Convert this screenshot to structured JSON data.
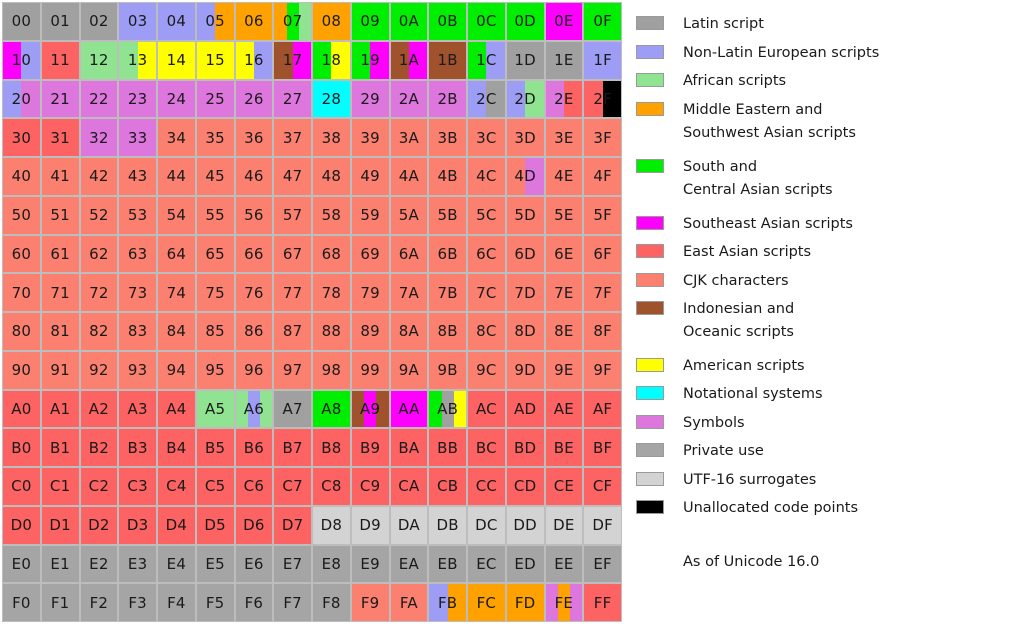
{
  "title": "",
  "colors": {
    "L": "#a0a0a0",
    "N": "#9d9df5",
    "A": "#90e391",
    "M": "#ffa200",
    "S": "#00ee00",
    "E": "#ff00ff",
    "R": "#fd6363",
    "K": "#fb8070",
    "I": "#a0522d",
    "U": "#ffff00",
    "T": "#00ffff",
    "Y": "#dd77dd",
    "P": "#a5a5a5",
    "G": "#d3d3d3",
    "X": "#000000"
  },
  "legend": [
    {
      "key": "L",
      "lines": [
        "Latin script"
      ]
    },
    {
      "key": "N",
      "lines": [
        "Non-Latin European scripts"
      ]
    },
    {
      "key": "A",
      "lines": [
        "African scripts"
      ]
    },
    {
      "key": "M",
      "lines": [
        "Middle Eastern and",
        "Southwest Asian scripts"
      ]
    },
    {
      "key": "S",
      "lines": [
        "South and",
        "Central Asian scripts"
      ]
    },
    {
      "key": "E",
      "lines": [
        "Southeast Asian scripts"
      ]
    },
    {
      "key": "R",
      "lines": [
        "East Asian scripts"
      ]
    },
    {
      "key": "K",
      "lines": [
        "CJK characters"
      ]
    },
    {
      "key": "I",
      "lines": [
        "Indonesian and",
        "Oceanic scripts"
      ]
    },
    {
      "key": "U",
      "lines": [
        "American scripts"
      ]
    },
    {
      "key": "T",
      "lines": [
        "Notational systems"
      ]
    },
    {
      "key": "Y",
      "lines": [
        "Symbols"
      ]
    },
    {
      "key": "P",
      "lines": [
        "Private use"
      ]
    },
    {
      "key": "G",
      "lines": [
        "UTF-16 surrogates"
      ]
    },
    {
      "key": "X",
      "lines": [
        "Unallocated code points"
      ]
    }
  ],
  "note": "As of Unicode 16.0",
  "cells": [
    {
      "label": "00",
      "c": [
        "L"
      ]
    },
    {
      "label": "01",
      "c": [
        "L"
      ]
    },
    {
      "label": "02",
      "c": [
        "L"
      ]
    },
    {
      "label": "03",
      "c": [
        "N"
      ]
    },
    {
      "label": "04",
      "c": [
        "N"
      ]
    },
    {
      "label": "05",
      "c": [
        "N",
        "M"
      ]
    },
    {
      "label": "06",
      "c": [
        "M"
      ]
    },
    {
      "label": "07",
      "c": [
        "M",
        "S",
        "A"
      ]
    },
    {
      "label": "08",
      "c": [
        "M"
      ]
    },
    {
      "label": "09",
      "c": [
        "S"
      ]
    },
    {
      "label": "0A",
      "c": [
        "S"
      ]
    },
    {
      "label": "0B",
      "c": [
        "S"
      ]
    },
    {
      "label": "0C",
      "c": [
        "S"
      ]
    },
    {
      "label": "0D",
      "c": [
        "S"
      ]
    },
    {
      "label": "0E",
      "c": [
        "E"
      ]
    },
    {
      "label": "0F",
      "c": [
        "S"
      ]
    },
    {
      "label": "10",
      "c": [
        "E",
        "N"
      ]
    },
    {
      "label": "11",
      "c": [
        "R"
      ]
    },
    {
      "label": "12",
      "c": [
        "A"
      ]
    },
    {
      "label": "13",
      "c": [
        "A",
        "U"
      ]
    },
    {
      "label": "14",
      "c": [
        "U"
      ]
    },
    {
      "label": "15",
      "c": [
        "U"
      ]
    },
    {
      "label": "16",
      "c": [
        "U",
        "N"
      ]
    },
    {
      "label": "17",
      "c": [
        "I",
        "E"
      ]
    },
    {
      "label": "18",
      "c": [
        "S",
        "U"
      ]
    },
    {
      "label": "19",
      "c": [
        "S",
        "E"
      ]
    },
    {
      "label": "1A",
      "c": [
        "I",
        "E"
      ]
    },
    {
      "label": "1B",
      "c": [
        "I"
      ]
    },
    {
      "label": "1C",
      "c": [
        "S",
        "N"
      ]
    },
    {
      "label": "1D",
      "c": [
        "L"
      ]
    },
    {
      "label": "1E",
      "c": [
        "L"
      ]
    },
    {
      "label": "1F",
      "c": [
        "N"
      ]
    },
    {
      "label": "20",
      "c": [
        "N",
        "Y"
      ]
    },
    {
      "label": "21",
      "c": [
        "Y"
      ]
    },
    {
      "label": "22",
      "c": [
        "Y"
      ]
    },
    {
      "label": "23",
      "c": [
        "Y"
      ]
    },
    {
      "label": "24",
      "c": [
        "Y"
      ]
    },
    {
      "label": "25",
      "c": [
        "Y"
      ]
    },
    {
      "label": "26",
      "c": [
        "Y"
      ]
    },
    {
      "label": "27",
      "c": [
        "Y"
      ]
    },
    {
      "label": "28",
      "c": [
        "T"
      ]
    },
    {
      "label": "29",
      "c": [
        "Y"
      ]
    },
    {
      "label": "2A",
      "c": [
        "Y"
      ]
    },
    {
      "label": "2B",
      "c": [
        "Y"
      ]
    },
    {
      "label": "2C",
      "c": [
        "N",
        "L"
      ]
    },
    {
      "label": "2D",
      "c": [
        "N",
        "A"
      ]
    },
    {
      "label": "2E",
      "c": [
        "Y",
        "R"
      ]
    },
    {
      "label": "2F",
      "c": [
        "R",
        "X"
      ]
    },
    {
      "label": "30",
      "c": [
        "R"
      ]
    },
    {
      "label": "31",
      "c": [
        "R"
      ]
    },
    {
      "label": "32",
      "c": [
        "Y"
      ]
    },
    {
      "label": "33",
      "c": [
        "Y"
      ]
    },
    {
      "label": "34",
      "c": [
        "K"
      ]
    },
    {
      "label": "35",
      "c": [
        "K"
      ]
    },
    {
      "label": "36",
      "c": [
        "K"
      ]
    },
    {
      "label": "37",
      "c": [
        "K"
      ]
    },
    {
      "label": "38",
      "c": [
        "K"
      ]
    },
    {
      "label": "39",
      "c": [
        "K"
      ]
    },
    {
      "label": "3A",
      "c": [
        "K"
      ]
    },
    {
      "label": "3B",
      "c": [
        "K"
      ]
    },
    {
      "label": "3C",
      "c": [
        "K"
      ]
    },
    {
      "label": "3D",
      "c": [
        "K"
      ]
    },
    {
      "label": "3E",
      "c": [
        "K"
      ]
    },
    {
      "label": "3F",
      "c": [
        "K"
      ]
    },
    {
      "label": "40",
      "c": [
        "K"
      ]
    },
    {
      "label": "41",
      "c": [
        "K"
      ]
    },
    {
      "label": "42",
      "c": [
        "K"
      ]
    },
    {
      "label": "43",
      "c": [
        "K"
      ]
    },
    {
      "label": "44",
      "c": [
        "K"
      ]
    },
    {
      "label": "45",
      "c": [
        "K"
      ]
    },
    {
      "label": "46",
      "c": [
        "K"
      ]
    },
    {
      "label": "47",
      "c": [
        "K"
      ]
    },
    {
      "label": "48",
      "c": [
        "K"
      ]
    },
    {
      "label": "49",
      "c": [
        "K"
      ]
    },
    {
      "label": "4A",
      "c": [
        "K"
      ]
    },
    {
      "label": "4B",
      "c": [
        "K"
      ]
    },
    {
      "label": "4C",
      "c": [
        "K"
      ]
    },
    {
      "label": "4D",
      "c": [
        "K",
        "Y"
      ]
    },
    {
      "label": "4E",
      "c": [
        "K"
      ]
    },
    {
      "label": "4F",
      "c": [
        "K"
      ]
    },
    {
      "label": "50",
      "c": [
        "K"
      ]
    },
    {
      "label": "51",
      "c": [
        "K"
      ]
    },
    {
      "label": "52",
      "c": [
        "K"
      ]
    },
    {
      "label": "53",
      "c": [
        "K"
      ]
    },
    {
      "label": "54",
      "c": [
        "K"
      ]
    },
    {
      "label": "55",
      "c": [
        "K"
      ]
    },
    {
      "label": "56",
      "c": [
        "K"
      ]
    },
    {
      "label": "57",
      "c": [
        "K"
      ]
    },
    {
      "label": "58",
      "c": [
        "K"
      ]
    },
    {
      "label": "59",
      "c": [
        "K"
      ]
    },
    {
      "label": "5A",
      "c": [
        "K"
      ]
    },
    {
      "label": "5B",
      "c": [
        "K"
      ]
    },
    {
      "label": "5C",
      "c": [
        "K"
      ]
    },
    {
      "label": "5D",
      "c": [
        "K"
      ]
    },
    {
      "label": "5E",
      "c": [
        "K"
      ]
    },
    {
      "label": "5F",
      "c": [
        "K"
      ]
    },
    {
      "label": "60",
      "c": [
        "K"
      ]
    },
    {
      "label": "61",
      "c": [
        "K"
      ]
    },
    {
      "label": "62",
      "c": [
        "K"
      ]
    },
    {
      "label": "63",
      "c": [
        "K"
      ]
    },
    {
      "label": "64",
      "c": [
        "K"
      ]
    },
    {
      "label": "65",
      "c": [
        "K"
      ]
    },
    {
      "label": "66",
      "c": [
        "K"
      ]
    },
    {
      "label": "67",
      "c": [
        "K"
      ]
    },
    {
      "label": "68",
      "c": [
        "K"
      ]
    },
    {
      "label": "69",
      "c": [
        "K"
      ]
    },
    {
      "label": "6A",
      "c": [
        "K"
      ]
    },
    {
      "label": "6B",
      "c": [
        "K"
      ]
    },
    {
      "label": "6C",
      "c": [
        "K"
      ]
    },
    {
      "label": "6D",
      "c": [
        "K"
      ]
    },
    {
      "label": "6E",
      "c": [
        "K"
      ]
    },
    {
      "label": "6F",
      "c": [
        "K"
      ]
    },
    {
      "label": "70",
      "c": [
        "K"
      ]
    },
    {
      "label": "71",
      "c": [
        "K"
      ]
    },
    {
      "label": "72",
      "c": [
        "K"
      ]
    },
    {
      "label": "73",
      "c": [
        "K"
      ]
    },
    {
      "label": "74",
      "c": [
        "K"
      ]
    },
    {
      "label": "75",
      "c": [
        "K"
      ]
    },
    {
      "label": "76",
      "c": [
        "K"
      ]
    },
    {
      "label": "77",
      "c": [
        "K"
      ]
    },
    {
      "label": "78",
      "c": [
        "K"
      ]
    },
    {
      "label": "79",
      "c": [
        "K"
      ]
    },
    {
      "label": "7A",
      "c": [
        "K"
      ]
    },
    {
      "label": "7B",
      "c": [
        "K"
      ]
    },
    {
      "label": "7C",
      "c": [
        "K"
      ]
    },
    {
      "label": "7D",
      "c": [
        "K"
      ]
    },
    {
      "label": "7E",
      "c": [
        "K"
      ]
    },
    {
      "label": "7F",
      "c": [
        "K"
      ]
    },
    {
      "label": "80",
      "c": [
        "K"
      ]
    },
    {
      "label": "81",
      "c": [
        "K"
      ]
    },
    {
      "label": "82",
      "c": [
        "K"
      ]
    },
    {
      "label": "83",
      "c": [
        "K"
      ]
    },
    {
      "label": "84",
      "c": [
        "K"
      ]
    },
    {
      "label": "85",
      "c": [
        "K"
      ]
    },
    {
      "label": "86",
      "c": [
        "K"
      ]
    },
    {
      "label": "87",
      "c": [
        "K"
      ]
    },
    {
      "label": "88",
      "c": [
        "K"
      ]
    },
    {
      "label": "89",
      "c": [
        "K"
      ]
    },
    {
      "label": "8A",
      "c": [
        "K"
      ]
    },
    {
      "label": "8B",
      "c": [
        "K"
      ]
    },
    {
      "label": "8C",
      "c": [
        "K"
      ]
    },
    {
      "label": "8D",
      "c": [
        "K"
      ]
    },
    {
      "label": "8E",
      "c": [
        "K"
      ]
    },
    {
      "label": "8F",
      "c": [
        "K"
      ]
    },
    {
      "label": "90",
      "c": [
        "K"
      ]
    },
    {
      "label": "91",
      "c": [
        "K"
      ]
    },
    {
      "label": "92",
      "c": [
        "K"
      ]
    },
    {
      "label": "93",
      "c": [
        "K"
      ]
    },
    {
      "label": "94",
      "c": [
        "K"
      ]
    },
    {
      "label": "95",
      "c": [
        "K"
      ]
    },
    {
      "label": "96",
      "c": [
        "K"
      ]
    },
    {
      "label": "97",
      "c": [
        "K"
      ]
    },
    {
      "label": "98",
      "c": [
        "K"
      ]
    },
    {
      "label": "99",
      "c": [
        "K"
      ]
    },
    {
      "label": "9A",
      "c": [
        "K"
      ]
    },
    {
      "label": "9B",
      "c": [
        "K"
      ]
    },
    {
      "label": "9C",
      "c": [
        "K"
      ]
    },
    {
      "label": "9D",
      "c": [
        "K"
      ]
    },
    {
      "label": "9E",
      "c": [
        "K"
      ]
    },
    {
      "label": "9F",
      "c": [
        "K"
      ]
    },
    {
      "label": "A0",
      "c": [
        "R"
      ]
    },
    {
      "label": "A1",
      "c": [
        "R"
      ]
    },
    {
      "label": "A2",
      "c": [
        "R"
      ]
    },
    {
      "label": "A3",
      "c": [
        "R"
      ]
    },
    {
      "label": "A4",
      "c": [
        "R"
      ]
    },
    {
      "label": "A5",
      "c": [
        "A"
      ]
    },
    {
      "label": "A6",
      "c": [
        "A",
        "N",
        "A"
      ]
    },
    {
      "label": "A7",
      "c": [
        "L"
      ]
    },
    {
      "label": "A8",
      "c": [
        "S",
        "S"
      ]
    },
    {
      "label": "A9",
      "c": [
        "I",
        "E",
        "I"
      ]
    },
    {
      "label": "AA",
      "c": [
        "E"
      ]
    },
    {
      "label": "AB",
      "c": [
        "S",
        "L",
        "U"
      ]
    },
    {
      "label": "AC",
      "c": [
        "R"
      ]
    },
    {
      "label": "AD",
      "c": [
        "R"
      ]
    },
    {
      "label": "AE",
      "c": [
        "R"
      ]
    },
    {
      "label": "AF",
      "c": [
        "R"
      ]
    },
    {
      "label": "B0",
      "c": [
        "R"
      ]
    },
    {
      "label": "B1",
      "c": [
        "R"
      ]
    },
    {
      "label": "B2",
      "c": [
        "R"
      ]
    },
    {
      "label": "B3",
      "c": [
        "R"
      ]
    },
    {
      "label": "B4",
      "c": [
        "R"
      ]
    },
    {
      "label": "B5",
      "c": [
        "R"
      ]
    },
    {
      "label": "B6",
      "c": [
        "R"
      ]
    },
    {
      "label": "B7",
      "c": [
        "R"
      ]
    },
    {
      "label": "B8",
      "c": [
        "R"
      ]
    },
    {
      "label": "B9",
      "c": [
        "R"
      ]
    },
    {
      "label": "BA",
      "c": [
        "R"
      ]
    },
    {
      "label": "BB",
      "c": [
        "R"
      ]
    },
    {
      "label": "BC",
      "c": [
        "R"
      ]
    },
    {
      "label": "BD",
      "c": [
        "R"
      ]
    },
    {
      "label": "BE",
      "c": [
        "R"
      ]
    },
    {
      "label": "BF",
      "c": [
        "R"
      ]
    },
    {
      "label": "C0",
      "c": [
        "R"
      ]
    },
    {
      "label": "C1",
      "c": [
        "R"
      ]
    },
    {
      "label": "C2",
      "c": [
        "R"
      ]
    },
    {
      "label": "C3",
      "c": [
        "R"
      ]
    },
    {
      "label": "C4",
      "c": [
        "R"
      ]
    },
    {
      "label": "C5",
      "c": [
        "R"
      ]
    },
    {
      "label": "C6",
      "c": [
        "R"
      ]
    },
    {
      "label": "C7",
      "c": [
        "R"
      ]
    },
    {
      "label": "C8",
      "c": [
        "R"
      ]
    },
    {
      "label": "C9",
      "c": [
        "R"
      ]
    },
    {
      "label": "CA",
      "c": [
        "R"
      ]
    },
    {
      "label": "CB",
      "c": [
        "R"
      ]
    },
    {
      "label": "CC",
      "c": [
        "R"
      ]
    },
    {
      "label": "CD",
      "c": [
        "R"
      ]
    },
    {
      "label": "CE",
      "c": [
        "R"
      ]
    },
    {
      "label": "CF",
      "c": [
        "R"
      ]
    },
    {
      "label": "D0",
      "c": [
        "R"
      ]
    },
    {
      "label": "D1",
      "c": [
        "R"
      ]
    },
    {
      "label": "D2",
      "c": [
        "R"
      ]
    },
    {
      "label": "D3",
      "c": [
        "R"
      ]
    },
    {
      "label": "D4",
      "c": [
        "R"
      ]
    },
    {
      "label": "D5",
      "c": [
        "R"
      ]
    },
    {
      "label": "D6",
      "c": [
        "R"
      ]
    },
    {
      "label": "D7",
      "c": [
        "R"
      ]
    },
    {
      "label": "D8",
      "c": [
        "G"
      ]
    },
    {
      "label": "D9",
      "c": [
        "G"
      ]
    },
    {
      "label": "DA",
      "c": [
        "G"
      ]
    },
    {
      "label": "DB",
      "c": [
        "G"
      ]
    },
    {
      "label": "DC",
      "c": [
        "G"
      ]
    },
    {
      "label": "DD",
      "c": [
        "G"
      ]
    },
    {
      "label": "DE",
      "c": [
        "G"
      ]
    },
    {
      "label": "DF",
      "c": [
        "G"
      ]
    },
    {
      "label": "E0",
      "c": [
        "P"
      ]
    },
    {
      "label": "E1",
      "c": [
        "P"
      ]
    },
    {
      "label": "E2",
      "c": [
        "P"
      ]
    },
    {
      "label": "E3",
      "c": [
        "P"
      ]
    },
    {
      "label": "E4",
      "c": [
        "P"
      ]
    },
    {
      "label": "E5",
      "c": [
        "P"
      ]
    },
    {
      "label": "E6",
      "c": [
        "P"
      ]
    },
    {
      "label": "E7",
      "c": [
        "P"
      ]
    },
    {
      "label": "E8",
      "c": [
        "P"
      ]
    },
    {
      "label": "E9",
      "c": [
        "P"
      ]
    },
    {
      "label": "EA",
      "c": [
        "P"
      ]
    },
    {
      "label": "EB",
      "c": [
        "P"
      ]
    },
    {
      "label": "EC",
      "c": [
        "P"
      ]
    },
    {
      "label": "ED",
      "c": [
        "P"
      ]
    },
    {
      "label": "EE",
      "c": [
        "P"
      ]
    },
    {
      "label": "EF",
      "c": [
        "P"
      ]
    },
    {
      "label": "F0",
      "c": [
        "P"
      ]
    },
    {
      "label": "F1",
      "c": [
        "P"
      ]
    },
    {
      "label": "F2",
      "c": [
        "P"
      ]
    },
    {
      "label": "F3",
      "c": [
        "P"
      ]
    },
    {
      "label": "F4",
      "c": [
        "P"
      ]
    },
    {
      "label": "F5",
      "c": [
        "P"
      ]
    },
    {
      "label": "F6",
      "c": [
        "P"
      ]
    },
    {
      "label": "F7",
      "c": [
        "P"
      ]
    },
    {
      "label": "F8",
      "c": [
        "P"
      ]
    },
    {
      "label": "F9",
      "c": [
        "K"
      ]
    },
    {
      "label": "FA",
      "c": [
        "K"
      ]
    },
    {
      "label": "FB",
      "c": [
        "N",
        "M"
      ]
    },
    {
      "label": "FC",
      "c": [
        "M"
      ]
    },
    {
      "label": "FD",
      "c": [
        "M"
      ]
    },
    {
      "label": "FE",
      "c": [
        "Y",
        "M",
        "Y"
      ]
    },
    {
      "label": "FF",
      "c": [
        "R"
      ]
    }
  ]
}
